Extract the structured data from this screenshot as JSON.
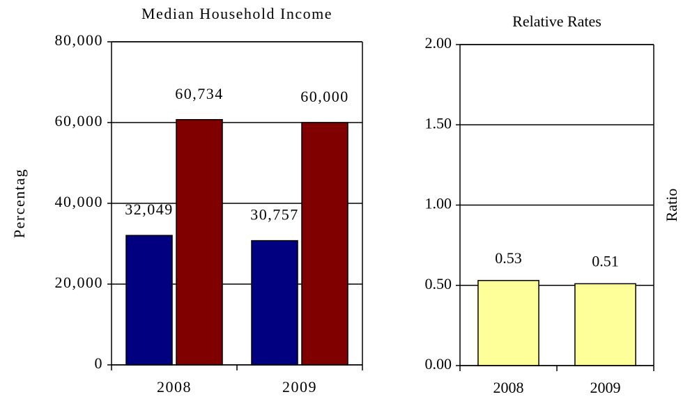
{
  "chart_data": [
    {
      "type": "bar",
      "title": "Median Household Income",
      "y_label": "Percentag",
      "categories": [
        "2008",
        "2009"
      ],
      "series": [
        {
          "color": "#000080",
          "values": [
            32049,
            30757
          ],
          "value_labels": [
            "32,049",
            "30,757"
          ]
        },
        {
          "color": "#800000",
          "values": [
            60734,
            60000
          ],
          "value_labels": [
            "60,734",
            "60,000"
          ]
        }
      ],
      "ylim": [
        0,
        80000
      ],
      "yticks": [
        0,
        {
          "value": 20000,
          "label": "20,000"
        },
        {
          "value": 40000,
          "label": "40,000"
        },
        {
          "value": 60000,
          "label": "60,000"
        },
        {
          "value": 80000,
          "label": "80,000"
        }
      ],
      "grid": true
    },
    {
      "type": "bar",
      "title": "Relative Rates",
      "y_label": "Ratio",
      "categories": [
        "2008",
        "2009"
      ],
      "values": [
        0.53,
        0.51
      ],
      "color": "#ffff99",
      "ylim": [
        0,
        2
      ],
      "yticks": [
        {
          "value": 0,
          "label": "0.00"
        },
        {
          "value": 0.5,
          "label": "0.50"
        },
        {
          "value": 1,
          "label": "1.00"
        },
        {
          "value": 1.5,
          "label": "1.50"
        },
        {
          "value": 2,
          "label": "2.00"
        }
      ],
      "grid": true
    }
  ]
}
